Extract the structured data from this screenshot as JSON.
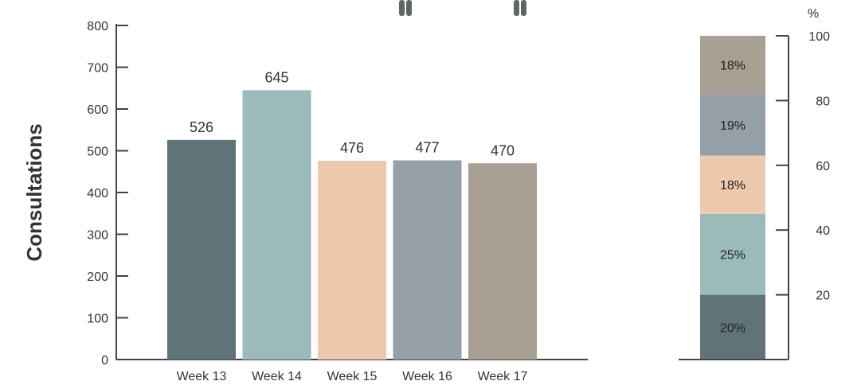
{
  "colors": [
    "#5f7478",
    "#9bbbba",
    "#edc9ae",
    "#949fa8",
    "#a8a093"
  ],
  "decorations": [
    "pause-icon",
    "pause-icon"
  ],
  "chart_data": [
    {
      "type": "bar",
      "categories": [
        "Week 13",
        "Week 14",
        "Week 15",
        "Week 16",
        "Week 17"
      ],
      "values": [
        526,
        645,
        476,
        477,
        470
      ],
      "value_labels": [
        "526",
        "645",
        "476",
        "477",
        "470"
      ],
      "ylabel": "Consultations",
      "ylim": [
        0,
        800
      ],
      "yticks": [
        0,
        100,
        200,
        300,
        400,
        500,
        600,
        700,
        800
      ],
      "ytick_labels": [
        "0",
        "100",
        "200",
        "300",
        "400",
        "500",
        "600",
        "700",
        "800"
      ],
      "grid": false
    },
    {
      "type": "bar",
      "stacked": true,
      "unit": "%",
      "ylim": [
        0,
        100
      ],
      "yticks": [
        20,
        40,
        60,
        80,
        100
      ],
      "ytick_labels": [
        "20",
        "40",
        "60",
        "80",
        "100"
      ],
      "segments": [
        {
          "value": 20,
          "label": "20%"
        },
        {
          "value": 25,
          "label": "25%"
        },
        {
          "value": 18,
          "label": "18%"
        },
        {
          "value": 19,
          "label": "19%"
        },
        {
          "value": 18,
          "label": "18%"
        }
      ]
    }
  ]
}
